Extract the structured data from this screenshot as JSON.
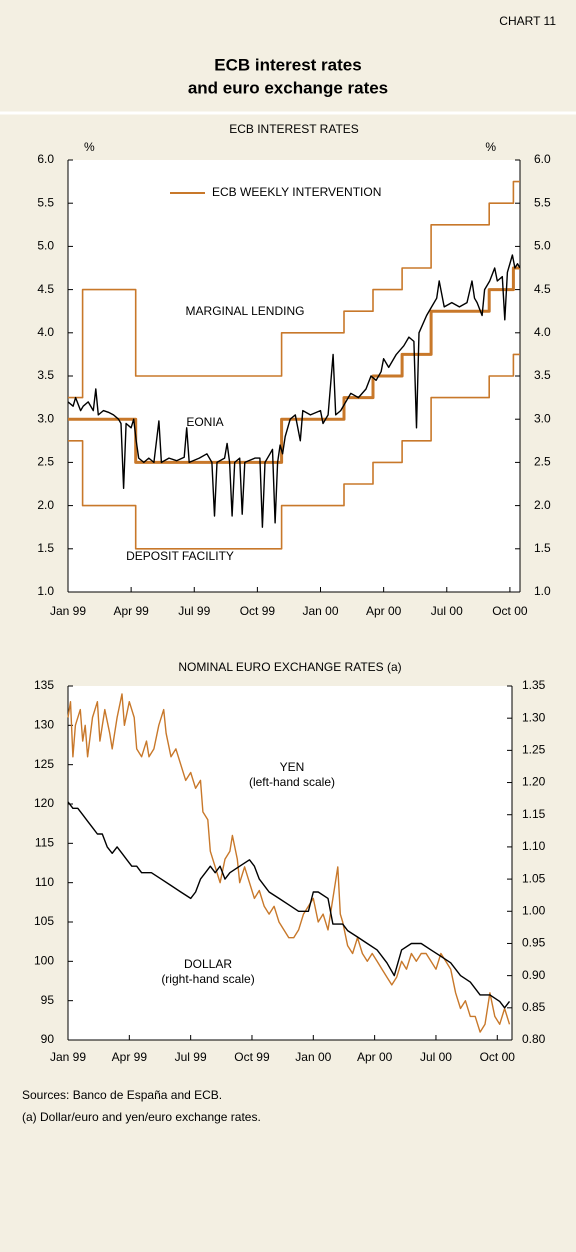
{
  "header": {
    "label": "CHART 11",
    "title": [
      "ECB interest rates",
      "and euro exchange rates"
    ]
  },
  "footnotes": [
    "Sources: Banco de España and ECB.",
    "(a)  Dollar/euro and yen/euro exchange rates."
  ],
  "chart_data": [
    {
      "type": "line",
      "title": "ECB INTEREST RATES",
      "ylabel": "%",
      "y2label": "%",
      "xlim": [
        1999,
        2000.79
      ],
      "ylim": [
        1.0,
        6.0
      ],
      "y2lim": [
        1.0,
        6.0
      ],
      "xticks": [
        {
          "value": 1999.0,
          "label": "Jan 99"
        },
        {
          "value": 1999.25,
          "label": "Apr 99"
        },
        {
          "value": 1999.5,
          "label": "Jul 99"
        },
        {
          "value": 1999.75,
          "label": "Oct 99"
        },
        {
          "value": 2000.0,
          "label": "Jan 00"
        },
        {
          "value": 2000.25,
          "label": "Apr 00"
        },
        {
          "value": 2000.5,
          "label": "Jul 00"
        },
        {
          "value": 2000.75,
          "label": "Oct 00"
        }
      ],
      "yticks": [
        {
          "value": 1.0,
          "label": "1.0"
        },
        1.5,
        {
          "value": 2.0,
          "label": "2.0"
        },
        2.5,
        {
          "value": 3.0,
          "label": "3.0"
        },
        3.5,
        {
          "value": 4.0,
          "label": "4.0"
        },
        4.5,
        {
          "value": 5.0,
          "label": "5.0"
        },
        5.5,
        {
          "value": 6.0,
          "label": "6.0"
        }
      ],
      "y2ticks": [
        {
          "value": 1.0,
          "label": "1.0"
        },
        1.5,
        {
          "value": 2.0,
          "label": "2.0"
        },
        2.5,
        {
          "value": 3.0,
          "label": "3.0"
        },
        3.5,
        {
          "value": 4.0,
          "label": "4.0"
        },
        4.5,
        {
          "value": 5.0,
          "label": "5.0"
        },
        5.5,
        {
          "value": 6.0,
          "label": "6.0"
        }
      ],
      "series": [
        {
          "name": "ECB WEEKLY INTERVENTION",
          "color": "#c8782a",
          "x": [
            1999,
            1999.268,
            1999.268,
            1999.846,
            1999.846,
            2000.093,
            2000.093,
            2000.208,
            2000.208,
            2000.323,
            2000.323,
            2000.438,
            2000.438,
            2000.668,
            2000.668,
            2000.764,
            2000.764,
            2000.79
          ],
          "values": [
            3.0,
            3.0,
            2.5,
            2.5,
            3.0,
            3.0,
            3.25,
            3.25,
            3.5,
            3.5,
            3.75,
            3.75,
            4.25,
            4.25,
            4.5,
            4.5,
            4.75,
            4.75
          ]
        },
        {
          "name": "MARGINAL LENDING",
          "color": "#c8782a",
          "x": [
            1999,
            1999.058,
            1999.058,
            1999.268,
            1999.268,
            1999.846,
            1999.846,
            2000.093,
            2000.093,
            2000.208,
            2000.208,
            2000.323,
            2000.323,
            2000.438,
            2000.438,
            2000.668,
            2000.668,
            2000.764,
            2000.764,
            2000.79
          ],
          "values": [
            3.25,
            3.25,
            4.5,
            4.5,
            3.5,
            3.5,
            4.0,
            4.0,
            4.25,
            4.25,
            4.5,
            4.5,
            4.75,
            4.75,
            5.25,
            5.25,
            5.5,
            5.5,
            5.75,
            5.75
          ]
        },
        {
          "name": "EONIA",
          "color": "#000000",
          "x": [
            1999.0,
            1999.02,
            1999.03,
            1999.05,
            1999.06,
            1999.08,
            1999.1,
            1999.11,
            1999.12,
            1999.14,
            1999.16,
            1999.18,
            1999.2,
            1999.21,
            1999.22,
            1999.23,
            1999.25,
            1999.26,
            1999.27,
            1999.28,
            1999.3,
            1999.32,
            1999.34,
            1999.36,
            1999.37,
            1999.4,
            1999.43,
            1999.46,
            1999.47,
            1999.48,
            1999.52,
            1999.55,
            1999.57,
            1999.58,
            1999.59,
            1999.62,
            1999.63,
            1999.64,
            1999.65,
            1999.66,
            1999.68,
            1999.69,
            1999.7,
            1999.74,
            1999.76,
            1999.77,
            1999.78,
            1999.8,
            1999.81,
            1999.82,
            1999.83,
            1999.84,
            1999.85,
            1999.86,
            1999.88,
            1999.9,
            1999.92,
            1999.93,
            1999.96,
            2000.0,
            2000.01,
            2000.03,
            2000.05,
            2000.06,
            2000.08,
            2000.1,
            2000.12,
            2000.15,
            2000.18,
            2000.2,
            2000.22,
            2000.24,
            2000.25,
            2000.27,
            2000.3,
            2000.33,
            2000.35,
            2000.37,
            2000.38,
            2000.39,
            2000.42,
            2000.44,
            2000.46,
            2000.47,
            2000.49,
            2000.52,
            2000.55,
            2000.58,
            2000.6,
            2000.61,
            2000.62,
            2000.64,
            2000.65,
            2000.67,
            2000.69,
            2000.7,
            2000.72,
            2000.73,
            2000.74,
            2000.76,
            2000.77,
            2000.78,
            2000.79
          ],
          "values": [
            3.2,
            3.15,
            3.25,
            3.1,
            3.15,
            3.2,
            3.1,
            3.35,
            3.05,
            3.1,
            3.08,
            3.05,
            3.0,
            2.95,
            2.2,
            2.95,
            2.9,
            3.0,
            2.75,
            2.55,
            2.5,
            2.55,
            2.5,
            2.98,
            2.5,
            2.55,
            2.52,
            2.56,
            2.9,
            2.5,
            2.55,
            2.6,
            2.5,
            1.88,
            2.5,
            2.55,
            2.72,
            2.5,
            1.88,
            2.5,
            2.55,
            1.9,
            2.5,
            2.55,
            2.55,
            1.75,
            2.5,
            2.6,
            2.65,
            1.8,
            2.5,
            2.7,
            2.6,
            2.8,
            3.0,
            3.05,
            2.75,
            3.1,
            3.05,
            3.1,
            2.95,
            3.05,
            3.75,
            3.05,
            3.1,
            3.2,
            3.3,
            3.25,
            3.35,
            3.5,
            3.45,
            3.55,
            3.7,
            3.6,
            3.75,
            3.85,
            3.95,
            3.9,
            2.9,
            4.0,
            4.2,
            4.3,
            4.4,
            4.6,
            4.3,
            4.35,
            4.3,
            4.35,
            4.6,
            4.4,
            4.35,
            4.2,
            4.5,
            4.6,
            4.75,
            4.6,
            4.65,
            4.15,
            4.7,
            4.9,
            4.75,
            4.8,
            4.75
          ]
        },
        {
          "name": "DEPOSIT FACILITY",
          "color": "#c8782a",
          "x": [
            1999,
            1999.058,
            1999.058,
            1999.268,
            1999.268,
            1999.846,
            1999.846,
            2000.093,
            2000.093,
            2000.208,
            2000.208,
            2000.323,
            2000.323,
            2000.438,
            2000.438,
            2000.668,
            2000.668,
            2000.764,
            2000.764,
            2000.79
          ],
          "values": [
            2.75,
            2.75,
            2.0,
            2.0,
            1.5,
            1.5,
            2.0,
            2.0,
            2.25,
            2.25,
            2.5,
            2.5,
            2.75,
            2.75,
            3.25,
            3.25,
            3.5,
            3.5,
            3.75,
            3.75
          ]
        }
      ]
    },
    {
      "type": "line",
      "title": "NOMINAL EURO EXCHANGE RATES (a)",
      "annotations": [
        "(left-hand scale)",
        "(right-hand scale)"
      ],
      "xlim": [
        1999,
        2000.81
      ],
      "ylim": [
        90,
        135
      ],
      "y2lim": [
        0.8,
        1.35
      ],
      "xticks": [
        {
          "value": 1999.0,
          "label": "Jan 99"
        },
        {
          "value": 1999.25,
          "label": "Apr 99"
        },
        {
          "value": 1999.5,
          "label": "Jul 99"
        },
        {
          "value": 1999.75,
          "label": "Oct 99"
        },
        {
          "value": 2000.0,
          "label": "Jan 00"
        },
        {
          "value": 2000.25,
          "label": "Apr 00"
        },
        {
          "value": 2000.5,
          "label": "Jul 00"
        },
        {
          "value": 2000.75,
          "label": "Oct 00"
        }
      ],
      "yticks": [
        90,
        95,
        100,
        105,
        110,
        115,
        120,
        125,
        130,
        135
      ],
      "y2ticks": [
        {
          "value": 0.8,
          "label": "0.80"
        },
        0.85,
        {
          "value": 0.9,
          "label": "0.90"
        },
        0.95,
        {
          "value": 1.0,
          "label": "1.00"
        },
        1.05,
        {
          "value": 1.1,
          "label": "1.10"
        },
        1.15,
        {
          "value": 1.2,
          "label": "1.20"
        },
        1.25,
        {
          "value": 1.3,
          "label": "1.30"
        },
        1.35
      ],
      "series": [
        {
          "name": "YEN",
          "color": "#c8782a",
          "x": [
            1999.0,
            1999.01,
            1999.02,
            1999.03,
            1999.05,
            1999.06,
            1999.07,
            1999.08,
            1999.1,
            1999.12,
            1999.13,
            1999.15,
            1999.17,
            1999.18,
            1999.2,
            1999.22,
            1999.23,
            1999.25,
            1999.27,
            1999.28,
            1999.3,
            1999.32,
            1999.33,
            1999.35,
            1999.37,
            1999.39,
            1999.4,
            1999.42,
            1999.44,
            1999.46,
            1999.48,
            1999.5,
            1999.52,
            1999.54,
            1999.55,
            1999.57,
            1999.58,
            1999.6,
            1999.62,
            1999.64,
            1999.66,
            1999.67,
            1999.69,
            1999.7,
            1999.72,
            1999.74,
            1999.76,
            1999.78,
            1999.8,
            1999.82,
            1999.84,
            1999.86,
            1999.88,
            1999.9,
            1999.92,
            1999.94,
            1999.96,
            2000.0,
            2000.02,
            2000.04,
            2000.06,
            2000.08,
            2000.1,
            2000.11,
            2000.12,
            2000.14,
            2000.16,
            2000.18,
            2000.2,
            2000.22,
            2000.24,
            2000.26,
            2000.28,
            2000.3,
            2000.32,
            2000.34,
            2000.36,
            2000.38,
            2000.4,
            2000.42,
            2000.44,
            2000.46,
            2000.48,
            2000.5,
            2000.52,
            2000.54,
            2000.56,
            2000.58,
            2000.6,
            2000.62,
            2000.64,
            2000.66,
            2000.68,
            2000.7,
            2000.72,
            2000.74,
            2000.76,
            2000.78,
            2000.8
          ],
          "values": [
            131,
            133,
            126,
            130,
            132,
            128,
            130,
            126,
            131,
            133,
            128,
            132,
            129,
            127,
            131,
            134,
            130,
            133,
            131,
            127,
            126,
            128,
            126,
            127,
            130,
            132,
            129,
            126,
            127,
            125,
            123,
            124,
            122,
            123,
            119,
            118,
            114,
            112,
            110,
            113,
            114,
            116,
            113,
            110,
            112,
            110,
            108,
            109,
            107,
            106,
            107,
            105,
            104,
            103,
            103,
            104,
            106,
            108,
            105,
            106,
            104,
            108,
            112,
            106,
            105,
            102,
            101,
            103,
            101,
            100,
            101,
            100,
            99,
            98,
            97,
            98,
            100,
            99,
            101,
            100,
            101,
            101,
            100,
            99,
            101,
            100,
            99,
            96,
            94,
            95,
            93,
            93,
            91,
            92,
            96,
            93,
            92,
            94,
            92
          ]
        },
        {
          "name": "DOLLAR",
          "color": "#000000",
          "axis": "y2",
          "x": [
            1999.0,
            1999.02,
            1999.04,
            1999.06,
            1999.08,
            1999.1,
            1999.12,
            1999.14,
            1999.16,
            1999.18,
            1999.2,
            1999.22,
            1999.24,
            1999.26,
            1999.28,
            1999.3,
            1999.34,
            1999.38,
            1999.42,
            1999.46,
            1999.5,
            1999.52,
            1999.54,
            1999.56,
            1999.58,
            1999.6,
            1999.62,
            1999.64,
            1999.66,
            1999.7,
            1999.74,
            1999.76,
            1999.78,
            1999.82,
            1999.86,
            1999.9,
            1999.94,
            1999.98,
            2000.0,
            2000.02,
            2000.06,
            2000.08,
            2000.12,
            2000.14,
            2000.18,
            2000.22,
            2000.26,
            2000.3,
            2000.33,
            2000.36,
            2000.4,
            2000.44,
            2000.48,
            2000.52,
            2000.56,
            2000.6,
            2000.64,
            2000.68,
            2000.72,
            2000.76,
            2000.78,
            2000.8
          ],
          "values": [
            1.17,
            1.16,
            1.16,
            1.15,
            1.14,
            1.13,
            1.12,
            1.12,
            1.1,
            1.09,
            1.1,
            1.09,
            1.08,
            1.07,
            1.07,
            1.06,
            1.06,
            1.05,
            1.04,
            1.03,
            1.02,
            1.03,
            1.05,
            1.06,
            1.07,
            1.06,
            1.07,
            1.05,
            1.06,
            1.07,
            1.08,
            1.07,
            1.05,
            1.03,
            1.02,
            1.01,
            1.0,
            1.0,
            1.03,
            1.03,
            1.02,
            0.98,
            0.98,
            0.97,
            0.96,
            0.95,
            0.94,
            0.92,
            0.9,
            0.94,
            0.95,
            0.95,
            0.94,
            0.93,
            0.92,
            0.9,
            0.89,
            0.87,
            0.87,
            0.86,
            0.85,
            0.86
          ]
        }
      ]
    }
  ]
}
